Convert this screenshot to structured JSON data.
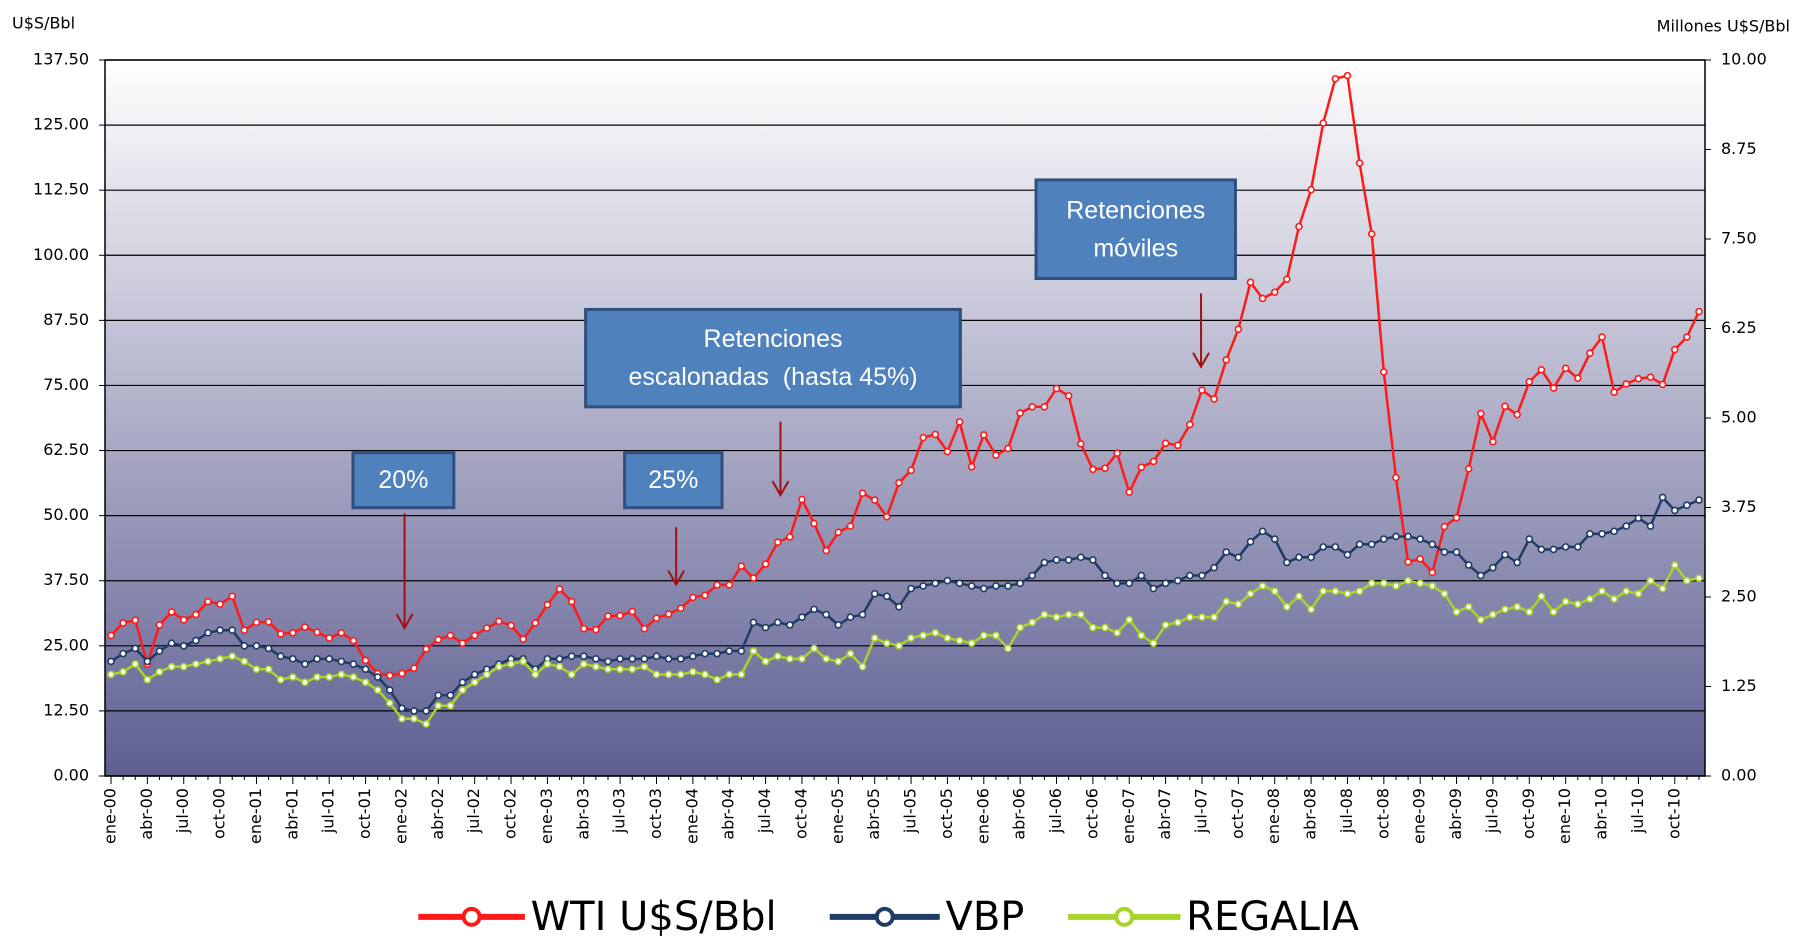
{
  "chart_data": {
    "type": "line",
    "y_axis_label": "U$S/Bbl",
    "y2_axis_label": "Millones U$S/Bbl",
    "categories": [
      "ene-00",
      null,
      null,
      "abr-00",
      null,
      null,
      "jul-00",
      null,
      null,
      "oct-00",
      null,
      null,
      "ene-01",
      null,
      null,
      "abr-01",
      null,
      null,
      "jul-01",
      null,
      null,
      "oct-01",
      null,
      null,
      "ene-02",
      null,
      null,
      "abr-02",
      null,
      null,
      "jul-02",
      null,
      null,
      "oct-02",
      null,
      null,
      "ene-03",
      null,
      null,
      "abr-03",
      null,
      null,
      "jul-03",
      null,
      null,
      "oct-03",
      null,
      null,
      "ene-04",
      null,
      null,
      "abr-04",
      null,
      null,
      "jul-04",
      null,
      null,
      "oct-04",
      null,
      null,
      "ene-05",
      null,
      null,
      "abr-05",
      null,
      null,
      "jul-05",
      null,
      null,
      "oct-05",
      null,
      null,
      "ene-06",
      null,
      null,
      "abr-06",
      null,
      null,
      "jul-06",
      null,
      null,
      "oct-06",
      null,
      null,
      "ene-07",
      null,
      null,
      "abr-07",
      null,
      null,
      "jul-07",
      null,
      null,
      "oct-07",
      null,
      null,
      "ene-08",
      null,
      null,
      "abr-08",
      null,
      null,
      "jul-08",
      null,
      null,
      "oct-08",
      null,
      null,
      "ene-09",
      null,
      null,
      "abr-09",
      null,
      null,
      "jul-09",
      null,
      null,
      "oct-09",
      null,
      null,
      "ene-10",
      null,
      null,
      "abr-10",
      null,
      null,
      "jul-10",
      null,
      null,
      "oct-10",
      null,
      null
    ],
    "series": [
      {
        "name": "WTI U$S/Bbl",
        "color": "#ff1a1a",
        "values": [
          27.0,
          29.4,
          29.9,
          21.5,
          29.0,
          31.5,
          30.0,
          31.0,
          33.5,
          33.0,
          34.5,
          28.0,
          29.5,
          29.6,
          27.3,
          27.5,
          28.6,
          27.6,
          26.5,
          27.5,
          26.0,
          22.2,
          19.7,
          19.3,
          19.7,
          20.7,
          24.4,
          26.2,
          27.0,
          25.5,
          27.0,
          28.4,
          29.7,
          28.9,
          26.3,
          29.4,
          32.9,
          35.9,
          33.5,
          28.3,
          28.1,
          30.7,
          30.8,
          31.6,
          28.3,
          30.3,
          31.1,
          32.2,
          34.3,
          34.7,
          36.7,
          36.7,
          40.3,
          38.0,
          40.7,
          44.9,
          45.9,
          53.1,
          48.5,
          43.3,
          46.8,
          48.0,
          54.3,
          53.0,
          49.8,
          56.3,
          58.7,
          65.0,
          65.6,
          62.3,
          68.0,
          59.4,
          65.5,
          61.6,
          62.9,
          69.7,
          70.9,
          70.9,
          74.4,
          73.0,
          63.8,
          58.9,
          59.1,
          62.0,
          54.5,
          59.3,
          60.4,
          63.9,
          63.5,
          67.5,
          74.1,
          72.4,
          79.9,
          85.8,
          94.8,
          91.7,
          92.9,
          95.4,
          105.5,
          112.6,
          125.4,
          133.9,
          134.5,
          117.7,
          104.1,
          77.6,
          57.3,
          41.1,
          41.7,
          39.1,
          47.9,
          49.6,
          59.0,
          69.6,
          64.2,
          71.0,
          69.4,
          75.7,
          78.0,
          74.5,
          78.3,
          76.4,
          81.2,
          84.3,
          73.7,
          75.3,
          76.3,
          76.6,
          75.2,
          81.9,
          84.3,
          89.2
        ]
      },
      {
        "name": "VBP",
        "color": "#1f3b66",
        "values": [
          22.0,
          23.5,
          24.5,
          22.0,
          24.0,
          25.5,
          25.0,
          26.0,
          27.5,
          28.0,
          28.0,
          25.0,
          25.0,
          24.5,
          23.0,
          22.5,
          21.5,
          22.5,
          22.5,
          22.0,
          21.5,
          20.5,
          19.0,
          16.5,
          13.0,
          12.5,
          12.5,
          15.5,
          15.5,
          18.0,
          19.5,
          20.5,
          21.5,
          22.5,
          22.5,
          20.5,
          22.5,
          22.5,
          23.0,
          23.0,
          22.5,
          22.0,
          22.5,
          22.5,
          22.5,
          23.0,
          22.5,
          22.5,
          23.0,
          23.5,
          23.5,
          24.0,
          24.0,
          29.5,
          28.5,
          29.5,
          29.0,
          30.5,
          32.0,
          31.0,
          29.0,
          30.5,
          31.0,
          35.0,
          34.5,
          32.5,
          36.0,
          36.5,
          37.0,
          37.5,
          37.0,
          36.5,
          36.0,
          36.5,
          36.5,
          37.0,
          38.5,
          41.0,
          41.5,
          41.5,
          42.0,
          41.5,
          38.5,
          37.0,
          37.0,
          38.5,
          36.0,
          37.0,
          37.5,
          38.5,
          38.5,
          40.0,
          43.0,
          42.0,
          45.0,
          47.0,
          45.5,
          41.0,
          42.0,
          42.0,
          44.0,
          44.0,
          42.5,
          44.5,
          44.5,
          45.5,
          46.0,
          46.0,
          45.5,
          44.5,
          43.0,
          43.0,
          40.5,
          38.5,
          40.0,
          42.5,
          41.0,
          45.5,
          43.5,
          43.5,
          44.0,
          44.0,
          46.5,
          46.5,
          47.0,
          48.0,
          49.5,
          48.0,
          53.5,
          51.0,
          52.0,
          53.0
        ]
      },
      {
        "name": "REGALIA",
        "color": "#a8d42c",
        "values": [
          19.5,
          20.0,
          21.5,
          18.5,
          20.0,
          21.0,
          21.0,
          21.5,
          22.0,
          22.5,
          23.0,
          22.0,
          20.5,
          20.5,
          18.5,
          19.0,
          18.0,
          19.0,
          19.0,
          19.5,
          19.0,
          18.0,
          16.5,
          14.0,
          11.0,
          11.0,
          10.0,
          13.5,
          13.5,
          16.5,
          18.0,
          19.5,
          21.0,
          21.5,
          22.0,
          19.5,
          21.5,
          21.0,
          19.5,
          21.5,
          21.0,
          20.5,
          20.5,
          20.5,
          21.0,
          19.5,
          19.5,
          19.5,
          20.0,
          19.5,
          18.5,
          19.5,
          19.5,
          24.0,
          22.0,
          23.0,
          22.5,
          22.5,
          24.5,
          22.5,
          22.0,
          23.5,
          21.0,
          26.5,
          25.5,
          25.0,
          26.5,
          27.0,
          27.5,
          26.5,
          26.0,
          25.5,
          27.0,
          27.0,
          24.5,
          28.5,
          29.5,
          31.0,
          30.5,
          31.0,
          31.0,
          28.5,
          28.5,
          27.5,
          30.0,
          27.0,
          25.5,
          29.0,
          29.5,
          30.5,
          30.5,
          30.5,
          33.5,
          33.0,
          35.0,
          36.5,
          35.5,
          32.5,
          34.5,
          32.0,
          35.5,
          35.5,
          35.0,
          35.5,
          37.0,
          37.0,
          36.5,
          37.5,
          37.0,
          36.5,
          35.0,
          31.5,
          32.5,
          30.0,
          31.0,
          32.0,
          32.5,
          31.5,
          34.5,
          31.5,
          33.5,
          33.0,
          34.0,
          35.5,
          34.0,
          35.5,
          35.0,
          37.5,
          36.0,
          40.5,
          37.5,
          38.0
        ]
      }
    ],
    "ylim": [
      0,
      137.5
    ],
    "yticks": [
      {
        "value": 0,
        "label": "0.00"
      },
      {
        "value": 12.5,
        "label": "12.50"
      },
      {
        "value": 25,
        "label": "25.00"
      },
      {
        "value": 37.5,
        "label": "37.50"
      },
      {
        "value": 50,
        "label": "50.00"
      },
      {
        "value": 62.5,
        "label": "62.50"
      },
      {
        "value": 75,
        "label": "75.00"
      },
      {
        "value": 87.5,
        "label": "87.50"
      },
      {
        "value": 100,
        "label": "100.00"
      },
      {
        "value": 112.5,
        "label": "112.50"
      },
      {
        "value": 125,
        "label": "125.00"
      },
      {
        "value": 137.5,
        "label": "137.50"
      }
    ],
    "y2lim": [
      0,
      10
    ],
    "y2ticks": [
      {
        "value": 0,
        "label": "0.00"
      },
      {
        "value": 1.25,
        "label": "1.25"
      },
      {
        "value": 2.5,
        "label": "2.50"
      },
      {
        "value": 3.75,
        "label": "3.75"
      },
      {
        "value": 5,
        "label": "5.00"
      },
      {
        "value": 6.25,
        "label": "6.25"
      },
      {
        "value": 7.5,
        "label": "7.50"
      },
      {
        "value": 8.75,
        "label": "8.75"
      },
      {
        "value": 10,
        "label": "10.00"
      }
    ],
    "grid": true,
    "legend": "bottom",
    "annotations": [
      {
        "lines": [
          "20%"
        ]
      },
      {
        "lines": [
          "25%"
        ]
      },
      {
        "lines": [
          "Retenciones",
          "escalonadas  (hasta 45%)"
        ]
      },
      {
        "lines": [
          "Retenciones",
          "móviles"
        ]
      }
    ]
  }
}
